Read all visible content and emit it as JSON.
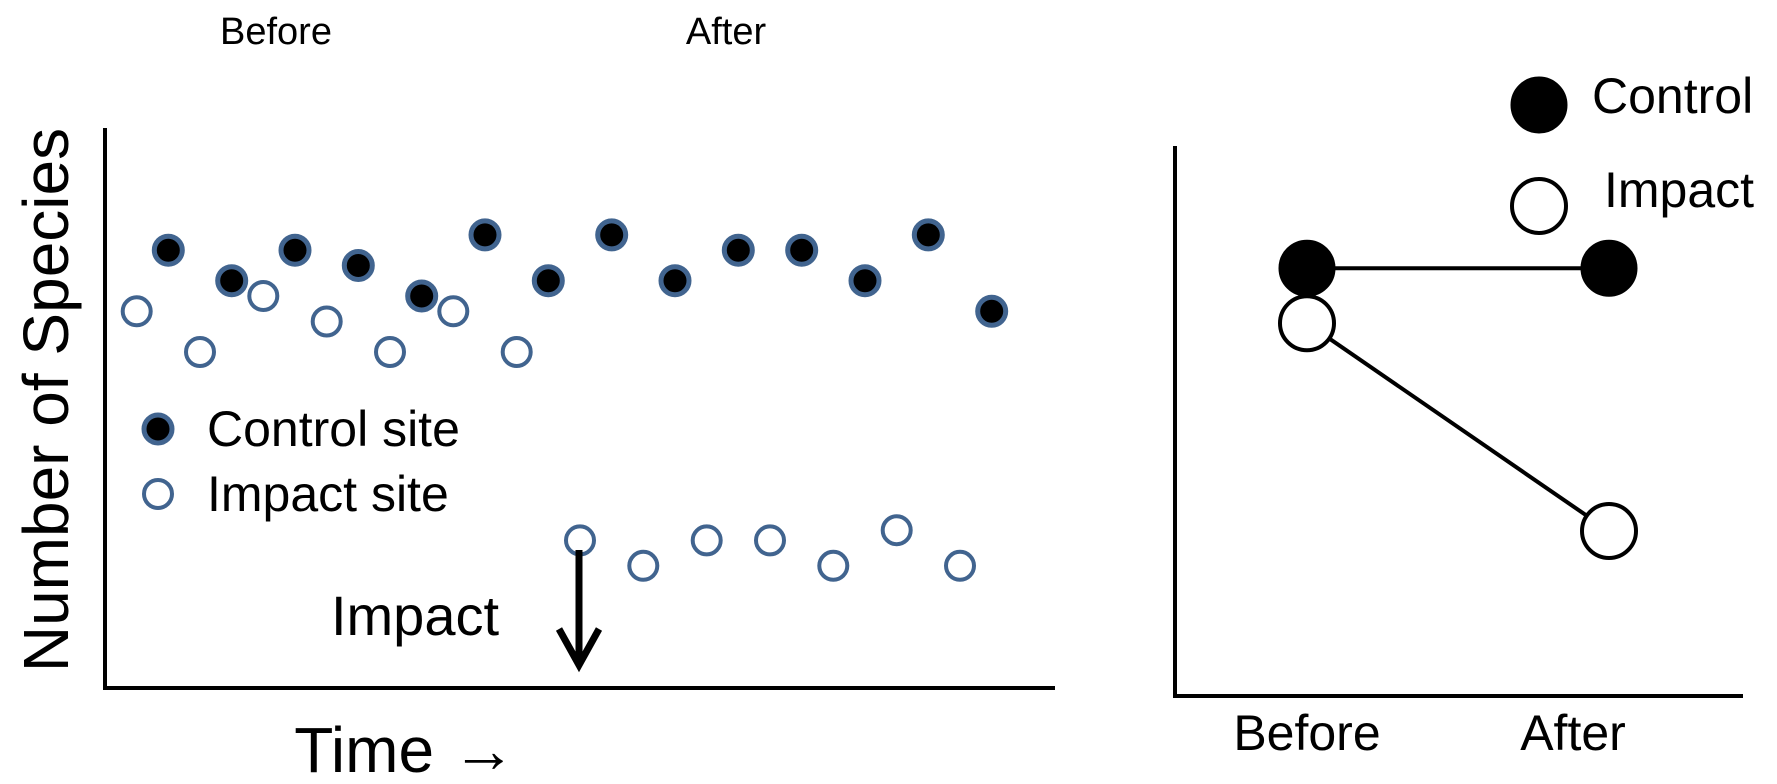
{
  "colors": {
    "marker_stroke": "#41648f",
    "axis": "#000000",
    "filled": "#000000",
    "open": "#ffffff"
  },
  "left_panel": {
    "period_labels": {
      "before": "Before",
      "after": "After"
    },
    "ylabel": "Number of Species",
    "xlabel": "Time →",
    "legend": {
      "control": "Control site",
      "impact": "Impact site"
    },
    "impact_annotation": "Impact"
  },
  "right_panel": {
    "legend": {
      "control": "Control",
      "impact": "Impact"
    },
    "categories": [
      "Before",
      "After"
    ]
  },
  "chart_data": [
    {
      "type": "scatter",
      "xlabel": "Time →",
      "ylabel": "Number of Species",
      "series": [
        {
          "name": "Control site",
          "points": [
            [
              1,
              8.6
            ],
            [
              2,
              8.0
            ],
            [
              3,
              8.6
            ],
            [
              4,
              8.3
            ],
            [
              5,
              7.7
            ],
            [
              6,
              8.9
            ],
            [
              7,
              8.0
            ],
            [
              8,
              8.9
            ],
            [
              9,
              8.0
            ],
            [
              10,
              8.6
            ],
            [
              11,
              8.6
            ],
            [
              12,
              8.0
            ],
            [
              13,
              8.9
            ],
            [
              14,
              7.4
            ]
          ]
        },
        {
          "name": "Impact site",
          "points": [
            [
              0.5,
              7.4
            ],
            [
              1.5,
              6.6
            ],
            [
              2.5,
              7.7
            ],
            [
              3.5,
              7.2
            ],
            [
              4.5,
              6.6
            ],
            [
              5.5,
              7.4
            ],
            [
              6.5,
              6.6
            ],
            [
              7.5,
              2.9
            ],
            [
              8.5,
              2.4
            ],
            [
              9.5,
              2.9
            ],
            [
              10.5,
              2.9
            ],
            [
              11.5,
              2.4
            ],
            [
              12.5,
              3.1
            ],
            [
              13.5,
              2.4
            ]
          ]
        }
      ],
      "impact_x": 7.2,
      "xlim": [
        0,
        15
      ],
      "ylim": [
        0,
        11
      ]
    },
    {
      "type": "line",
      "categories": [
        "Before",
        "After"
      ],
      "series": [
        {
          "name": "Control",
          "values": [
            7.0,
            7.0
          ]
        },
        {
          "name": "Impact",
          "values": [
            6.1,
            2.7
          ]
        }
      ],
      "ylim": [
        0,
        9
      ]
    }
  ]
}
